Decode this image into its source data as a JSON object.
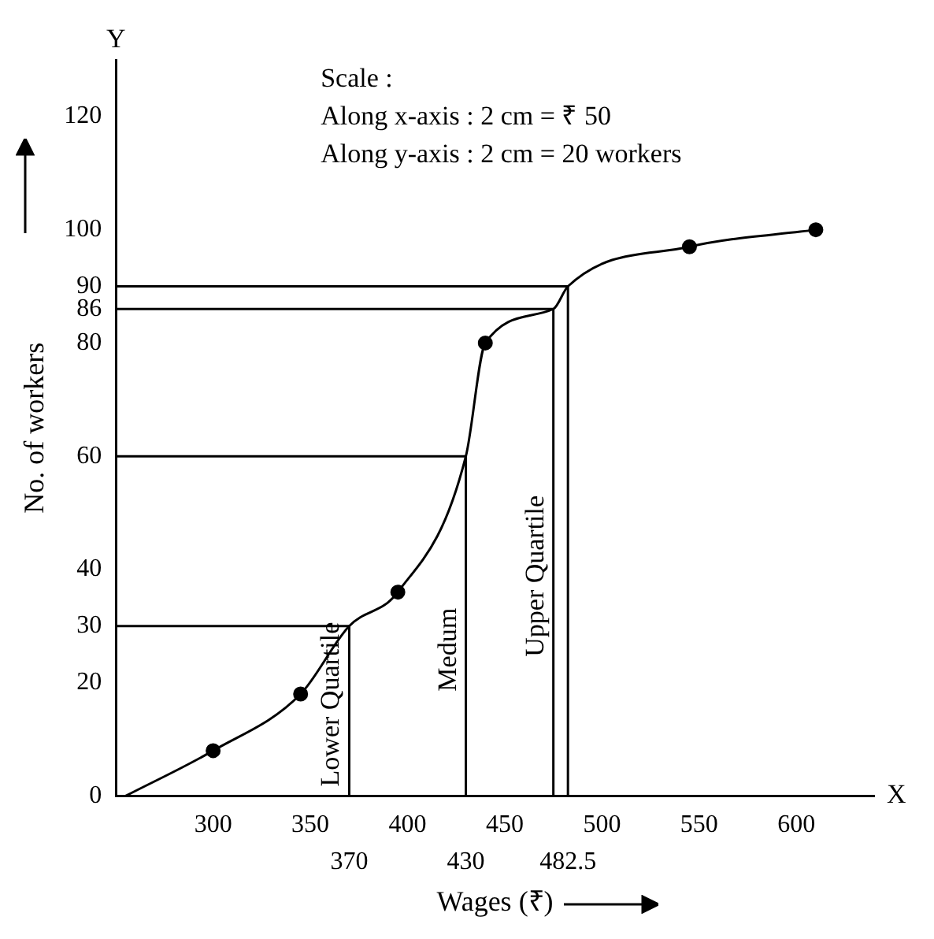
{
  "chart_data": {
    "type": "line",
    "xlabel": "Wages (₹)",
    "ylabel": "No. of workers",
    "xlim": [
      250,
      640
    ],
    "xticks": [
      300,
      350,
      400,
      450,
      500,
      550,
      600
    ],
    "ylim": [
      0,
      130
    ],
    "yticks": [
      0,
      20,
      30,
      40,
      60,
      80,
      86,
      90,
      100,
      120
    ],
    "grid": false,
    "legend": false,
    "series": [
      {
        "color": "#000000",
        "marker": "none",
        "x": [
          255,
          300,
          345,
          370,
          395,
          430,
          440,
          475,
          482.5,
          545,
          610
        ],
        "values": [
          0,
          8,
          18,
          30,
          36,
          60,
          80,
          86,
          90,
          97,
          100
        ]
      },
      {
        "type": "scatter",
        "color": "#000000",
        "marker": "circle",
        "x": [
          300,
          345,
          395,
          440,
          545,
          610
        ],
        "values": [
          8,
          18,
          36,
          80,
          97,
          100
        ]
      },
      {
        "type": "line",
        "name": "Lower Quartile",
        "color": "#000000",
        "marker": "none",
        "x": [
          250,
          370,
          370
        ],
        "values": [
          30,
          30,
          0
        ]
      },
      {
        "type": "line",
        "name": "Medum",
        "color": "#000000",
        "marker": "none",
        "x": [
          250,
          430,
          430
        ],
        "values": [
          60,
          60,
          0
        ]
      },
      {
        "type": "line",
        "name": "Upper Quartile",
        "color": "#000000",
        "marker": "none",
        "x": [
          250,
          475,
          475
        ],
        "values": [
          86,
          86,
          0
        ]
      },
      {
        "type": "line",
        "color": "#000000",
        "marker": "none",
        "x": [
          250,
          482.5,
          482.5
        ],
        "values": [
          90,
          90,
          0
        ]
      }
    ],
    "annotations": [
      "Scale :",
      "Along x-axis : 2 cm = ₹ 50",
      "Along y-axis : 2 cm = 20 workers",
      "Y",
      "X",
      {
        "text": "370",
        "x": 370,
        "y": 0
      },
      {
        "text": "430",
        "x": 430,
        "y": 0
      },
      {
        "text": "482.5",
        "x": 482.5,
        "y": 0
      }
    ]
  }
}
